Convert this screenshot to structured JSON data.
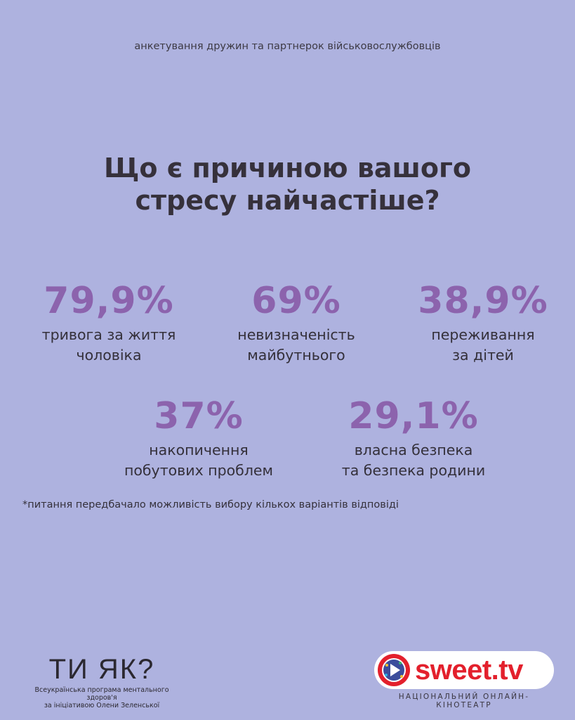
{
  "header": {
    "subtitle": "анкетування дружин та партнерок військовослужбовців"
  },
  "question": {
    "line1": "Що є причиною вашого",
    "line2": "стресу найчастіше?"
  },
  "stats": [
    {
      "percent": "79,9%",
      "value": 79.9,
      "label_line1": "тривога за життя",
      "label_line2": "чоловіка"
    },
    {
      "percent": "69%",
      "value": 69,
      "label_line1": "невизначеність",
      "label_line2": "майбутнього"
    },
    {
      "percent": "38,9%",
      "value": 38.9,
      "label_line1": "переживання",
      "label_line2": "за дітей"
    },
    {
      "percent": "37%",
      "value": 37,
      "label_line1": "накопичення",
      "label_line2": "побутових проблем"
    },
    {
      "percent": "29,1%",
      "value": 29.1,
      "label_line1": "власна безпека",
      "label_line2": "та безпека родини"
    }
  ],
  "footnote": "*питання передбачало можливість вибору кількох варіантів відповіді",
  "logos": {
    "tiyak": {
      "mark": "ТИ ЯК?",
      "line1": "Всеукраїнська програма ментального здоров'я",
      "line2": "за ініціативою Олени Зеленської"
    },
    "sweet": {
      "name": "SWEET.tv",
      "tagline": "НАЦІОНАЛЬНИЙ ОНЛАЙН-КІНОТЕАТР"
    }
  },
  "colors": {
    "background": "#aeb2df",
    "accent_purple": "#8c63ad",
    "text_dark": "#36313b",
    "sweet_red": "#e3202c"
  }
}
